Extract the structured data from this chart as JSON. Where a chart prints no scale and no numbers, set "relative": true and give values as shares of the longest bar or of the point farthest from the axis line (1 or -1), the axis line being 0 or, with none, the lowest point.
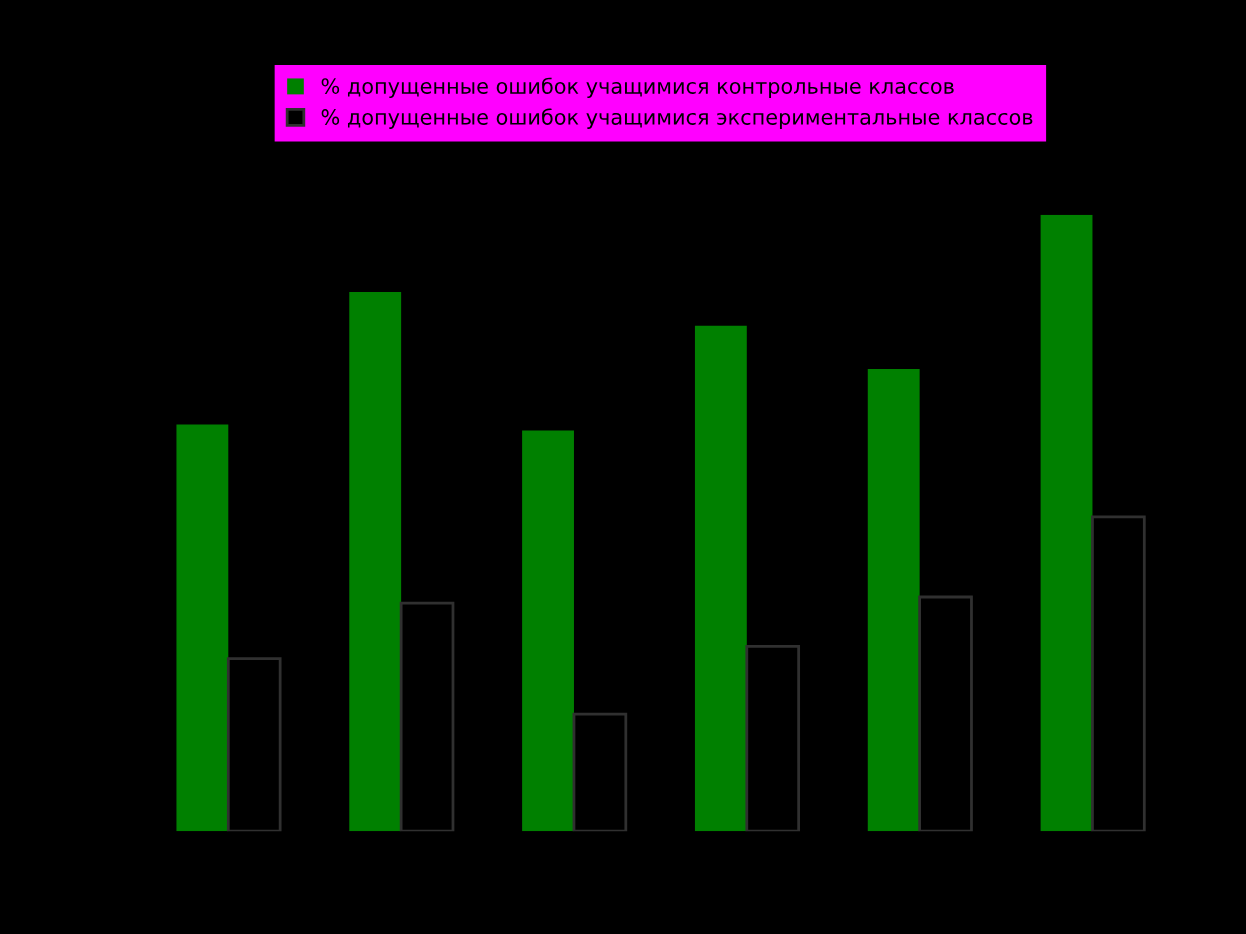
{
  "chart_data": {
    "type": "bar",
    "relative": true,
    "categories": [
      null,
      null,
      null,
      null,
      null,
      null
    ],
    "series": [
      {
        "name": "% допущенные ошибок учащимися контрольные классов",
        "color": "#008000",
        "values": [
          0.66,
          0.875,
          0.65,
          0.82,
          0.75,
          1.0
        ]
      },
      {
        "name": "% допущенные ошибок учащимися экспериментальные классов",
        "color": "#000000",
        "values": [
          0.28,
          0.37,
          0.19,
          0.3,
          0.38,
          0.51
        ]
      }
    ],
    "legend": "top",
    "grid": false
  }
}
